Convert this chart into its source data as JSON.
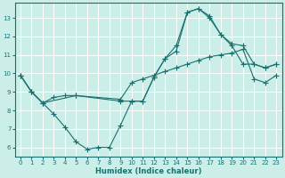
{
  "xlabel": "Humidex (Indice chaleur)",
  "bg_color": "#cceee8",
  "grid_color": "#ffffff",
  "line_color": "#1a7070",
  "xlim": [
    -0.5,
    23.5
  ],
  "ylim": [
    5.5,
    13.8
  ],
  "yticks": [
    6,
    7,
    8,
    9,
    10,
    11,
    12,
    13
  ],
  "xticks": [
    0,
    1,
    2,
    3,
    4,
    5,
    6,
    7,
    8,
    9,
    10,
    11,
    12,
    13,
    14,
    15,
    16,
    17,
    18,
    19,
    20,
    21,
    22,
    23
  ],
  "line1_x": [
    0,
    1,
    2,
    3,
    4,
    5,
    6,
    7,
    8,
    9,
    10,
    11,
    12,
    13,
    14,
    15,
    16,
    17,
    18,
    19,
    20,
    21,
    22,
    23
  ],
  "line1_y": [
    9.9,
    9.0,
    8.4,
    7.8,
    7.1,
    6.3,
    5.9,
    6.0,
    6.0,
    7.2,
    8.5,
    8.5,
    9.8,
    10.8,
    11.5,
    13.3,
    13.5,
    13.1,
    12.1,
    11.6,
    11.5,
    10.5,
    10.3,
    10.5
  ],
  "line2_x": [
    0,
    1,
    2,
    3,
    4,
    5,
    9,
    10,
    11,
    12,
    13,
    14,
    15,
    16,
    17,
    18,
    19,
    20,
    21,
    22,
    23
  ],
  "line2_y": [
    9.9,
    9.0,
    8.4,
    8.7,
    8.8,
    8.8,
    8.5,
    8.5,
    8.5,
    9.8,
    10.8,
    11.2,
    13.3,
    13.5,
    13.0,
    12.1,
    11.5,
    10.5,
    10.5,
    10.3,
    10.5
  ],
  "line3_x": [
    0,
    1,
    2,
    5,
    9,
    10,
    11,
    12,
    13,
    14,
    15,
    16,
    17,
    18,
    19,
    20,
    21,
    22,
    23
  ],
  "line3_y": [
    9.9,
    9.0,
    8.4,
    8.8,
    8.6,
    9.5,
    9.7,
    9.9,
    10.1,
    10.3,
    10.5,
    10.7,
    10.9,
    11.0,
    11.1,
    11.3,
    9.7,
    9.5,
    9.9
  ]
}
